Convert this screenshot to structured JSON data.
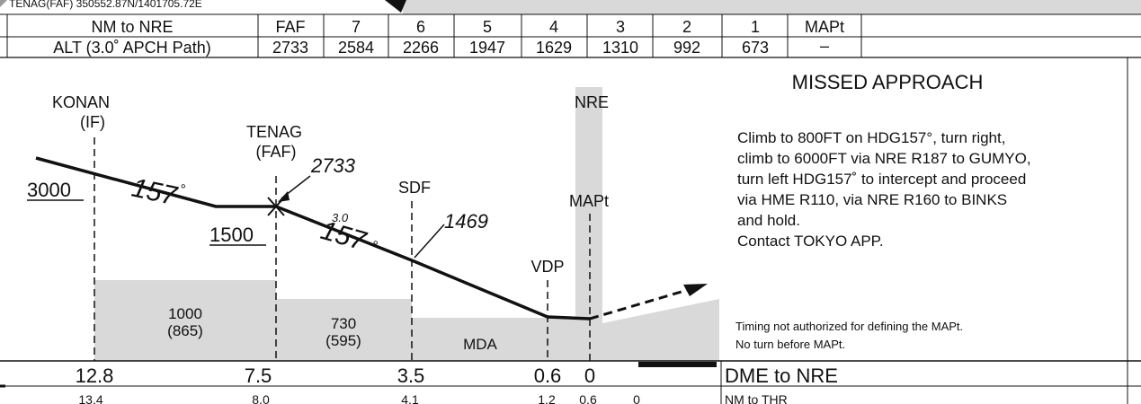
{
  "header_strip": {
    "text": "TENAG(FAF) 350552.87N/1401705.72E"
  },
  "altitude_table": {
    "row1_label": "NM to NRE",
    "row2_label": "ALT (3.0˚ APCH Path)",
    "columns": [
      {
        "fix": "FAF",
        "alt": "2733"
      },
      {
        "fix": "7",
        "alt": "2584"
      },
      {
        "fix": "6",
        "alt": "2266"
      },
      {
        "fix": "5",
        "alt": "1947"
      },
      {
        "fix": "4",
        "alt": "1629"
      },
      {
        "fix": "3",
        "alt": "1310"
      },
      {
        "fix": "2",
        "alt": "992"
      },
      {
        "fix": "1",
        "alt": "673"
      },
      {
        "fix": "MAPt",
        "alt": "–"
      }
    ]
  },
  "profile": {
    "fixes": {
      "konan_name": "KONAN",
      "konan_role": "(IF)",
      "tenag_name": "TENAG",
      "tenag_role": "(FAF)",
      "sdf": "SDF",
      "nre": "NRE",
      "mapt": "MAPt",
      "vdp": "VDP"
    },
    "altitudes": {
      "initial": "3000",
      "intermediate": "1500",
      "faf_alt": "2733",
      "sdf_alt": "1469"
    },
    "courses": {
      "initial_course": "157",
      "final_course": "157",
      "degree_symbol": "°",
      "glide_angle": "3.0"
    },
    "obstacle_boxes": {
      "box1_msa": "1000",
      "box1_hat": "(865)",
      "box2_msa": "730",
      "box2_hat": "(595)",
      "mda": "MDA"
    }
  },
  "missed_approach": {
    "title": "MISSED APPROACH",
    "lines": [
      "Climb to 800FT on HDG157°, turn right,",
      "climb to 6000FT via NRE R187 to GUMYO,",
      "turn left HDG157˚ to intercept and proceed",
      "via HME R110, via NRE R160 to BINKS",
      "and hold.",
      "Contact TOKYO APP."
    ],
    "notes": [
      "Timing not authorized for defining the MAPt.",
      "No turn before MAPt."
    ]
  },
  "distance_scale": {
    "dme_label": "DME to NRE",
    "thr_label": "NM to THR",
    "dme_values": [
      "12.8",
      "7.5",
      "3.5",
      "0.6",
      "0"
    ],
    "thr_values": [
      "13.4",
      "8.0",
      "4.1",
      "1.2",
      "0.6",
      "0"
    ]
  },
  "colors": {
    "terrain": "#d9d9d9",
    "line": "#111111",
    "background": "#ffffff"
  }
}
